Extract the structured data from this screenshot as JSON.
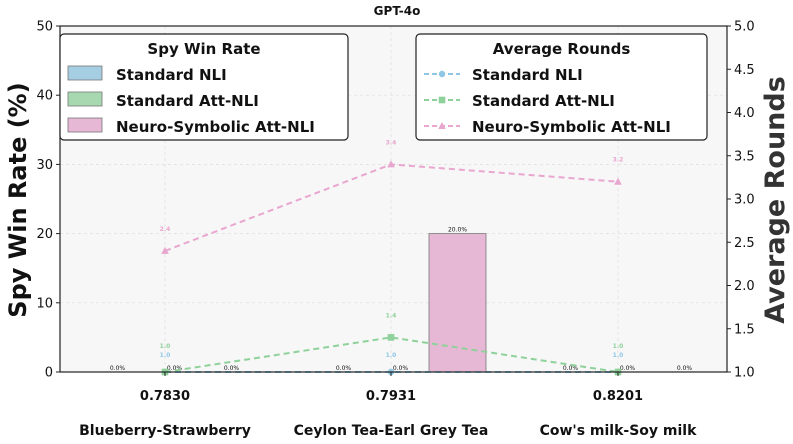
{
  "chart_data": {
    "type": "bar",
    "title": "GPT-4o",
    "categories": [
      "Blueberry-Strawberry",
      "Ceylon Tea-Earl Grey Tea",
      "Cow's milk-Soy milk"
    ],
    "category_values": [
      "0.7830",
      "0.7931",
      "0.8201"
    ],
    "ylabel": "Spy Win Rate (%)",
    "ylim": [
      0,
      50
    ],
    "yticks": [
      "0",
      "10",
      "20",
      "30",
      "40",
      "50"
    ],
    "y2label": "Average Rounds",
    "y2lim": [
      1.0,
      5.0
    ],
    "y2ticks": [
      "1.0",
      "1.5",
      "2.0",
      "2.5",
      "3.0",
      "3.5",
      "4.0",
      "4.5",
      "5.0"
    ],
    "grid": true,
    "bar_legend_title": "Spy Win Rate",
    "line_legend_title": "Average Rounds",
    "bar_series": [
      {
        "name": "Standard NLI",
        "values": [
          0.0,
          0.0,
          0.0
        ],
        "labels": [
          "0.0%",
          "0.0%",
          "0.0%"
        ],
        "color": "#a6cee3"
      },
      {
        "name": "Standard Att-NLI",
        "values": [
          0.0,
          0.0,
          0.0
        ],
        "labels": [
          "0.0%",
          "0.0%",
          "0.0%"
        ],
        "color": "#a8d8b0"
      },
      {
        "name": "Neuro-Symbolic Att-NLI",
        "values": [
          0.0,
          20.0,
          0.0
        ],
        "labels": [
          "0.0%",
          "20.0%",
          "0.0%"
        ],
        "color": "#e7b8d6"
      }
    ],
    "line_series": [
      {
        "name": "Standard NLI",
        "values": [
          1.0,
          1.0,
          1.0
        ],
        "labels": [
          "1.0",
          "1.0",
          "1.0"
        ],
        "color": "#8ec7e6",
        "marker": "circle"
      },
      {
        "name": "Standard Att-NLI",
        "values": [
          1.0,
          1.4,
          1.0
        ],
        "labels": [
          "1.0",
          "1.4",
          "1.0"
        ],
        "color": "#8fd19a",
        "marker": "square"
      },
      {
        "name": "Neuro-Symbolic Att-NLI",
        "values": [
          2.4,
          3.4,
          3.2
        ],
        "labels": [
          "2.4",
          "3.4",
          "3.2"
        ],
        "color": "#e9a6cf",
        "marker": "triangle"
      }
    ]
  }
}
